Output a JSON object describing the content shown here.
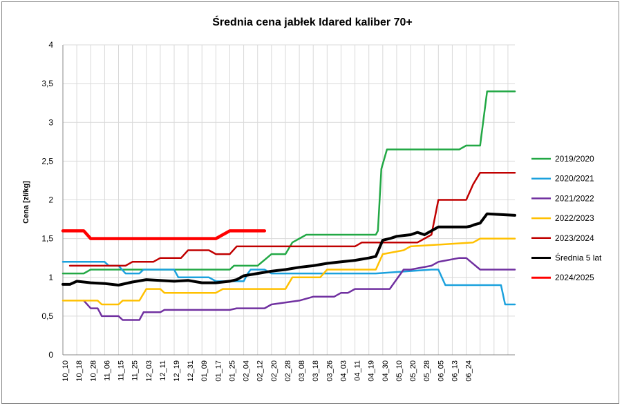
{
  "chart_data": {
    "type": "line",
    "title": "Średnia cena jabłek Idared kaliber 70+",
    "ylabel": "Cena [zł/kg]",
    "xlabel": "",
    "ylim": [
      0,
      4
    ],
    "ytick_values": [
      0,
      0.5,
      1,
      1.5,
      2,
      2.5,
      3,
      3.5,
      4
    ],
    "ytick_labels": [
      "0",
      "0,5",
      "1",
      "1,5",
      "2",
      "2,5",
      "3",
      "3,5",
      "4"
    ],
    "categories": [
      "10_10",
      "10_18",
      "10_28",
      "11_06",
      "11_15",
      "11_25",
      "12_03",
      "12_11",
      "12_19",
      "12_31",
      "01_09",
      "01_17",
      "01_25",
      "02_04",
      "02_12",
      "02_20",
      "02_28",
      "03_08",
      "03_18",
      "03_26",
      "04_03",
      "04_11",
      "04_19",
      "04_30",
      "05_10",
      "05_20",
      "05_28",
      "06_05",
      "06_13",
      "06_24"
    ],
    "x_extent": [
      0,
      32.5
    ],
    "grid": "vertical",
    "legend_position": "right",
    "series": [
      {
        "name": "2019/2020",
        "color": "#22a845",
        "width": 2.5,
        "x": [
          0,
          1.5,
          2.0,
          12.0,
          12.3,
          14.0,
          15.0,
          16.0,
          16.5,
          17.0,
          17.5,
          22.5,
          22.65,
          22.9,
          23.3,
          28.5,
          29.0,
          30.0,
          30.5,
          32.5
        ],
        "y": [
          1.05,
          1.05,
          1.1,
          1.1,
          1.15,
          1.15,
          1.3,
          1.3,
          1.45,
          1.5,
          1.55,
          1.55,
          1.6,
          2.4,
          2.65,
          2.65,
          2.7,
          2.7,
          3.4,
          3.4
        ]
      },
      {
        "name": "2020/2021",
        "color": "#1ba1dd",
        "width": 2.5,
        "x": [
          0,
          3.0,
          3.3,
          4.0,
          4.5,
          5.5,
          5.8,
          8.0,
          8.3,
          10.5,
          11.0,
          13.0,
          13.3,
          13.5,
          14.5,
          15.0,
          22.5,
          26.5,
          27.0,
          27.5,
          31.5,
          31.8,
          32.5
        ],
        "y": [
          1.2,
          1.2,
          1.15,
          1.15,
          1.05,
          1.05,
          1.1,
          1.1,
          1.0,
          1.0,
          0.95,
          0.95,
          1.05,
          1.1,
          1.1,
          1.05,
          1.05,
          1.1,
          1.1,
          0.9,
          0.9,
          0.65,
          0.65
        ]
      },
      {
        "name": "2021/2022",
        "color": "#7030a0",
        "width": 2.5,
        "x": [
          1.5,
          2.0,
          2.5,
          2.8,
          4.0,
          4.3,
          5.5,
          5.8,
          7.0,
          7.3,
          12.0,
          12.5,
          14.5,
          15.0,
          17.0,
          18.0,
          19.5,
          20.0,
          20.5,
          21.0,
          23.5,
          24.5,
          25.0,
          26.5,
          27.0,
          28.5,
          29.0,
          30.0,
          32.5
        ],
        "y": [
          0.7,
          0.6,
          0.6,
          0.5,
          0.5,
          0.45,
          0.45,
          0.55,
          0.55,
          0.58,
          0.58,
          0.6,
          0.6,
          0.65,
          0.7,
          0.75,
          0.75,
          0.8,
          0.8,
          0.85,
          0.85,
          1.1,
          1.1,
          1.15,
          1.2,
          1.25,
          1.25,
          1.1,
          1.1
        ]
      },
      {
        "name": "2022/2023",
        "color": "#ffc000",
        "width": 2.5,
        "x": [
          0,
          2.5,
          2.8,
          4.0,
          4.3,
          5.5,
          6.0,
          6.3,
          7.0,
          7.3,
          11.0,
          11.5,
          16.0,
          16.5,
          18.5,
          19.0,
          22.5,
          23.0,
          24.5,
          25.0,
          29.5,
          30.0,
          32.5
        ],
        "y": [
          0.7,
          0.7,
          0.65,
          0.65,
          0.7,
          0.7,
          0.85,
          0.85,
          0.85,
          0.8,
          0.8,
          0.85,
          0.85,
          1.0,
          1.0,
          1.1,
          1.1,
          1.3,
          1.35,
          1.4,
          1.45,
          1.5,
          1.5
        ]
      },
      {
        "name": "2023/2024",
        "color": "#c00000",
        "width": 2.5,
        "x": [
          0.5,
          3.0,
          3.3,
          4.5,
          5.0,
          6.5,
          7.0,
          8.5,
          9.0,
          10.5,
          11.0,
          12.0,
          12.5,
          21.0,
          21.5,
          25.5,
          26.0,
          26.5,
          27.0,
          29.0,
          29.5,
          30.0,
          32.5
        ],
        "y": [
          1.15,
          1.15,
          1.15,
          1.15,
          1.2,
          1.2,
          1.25,
          1.25,
          1.35,
          1.35,
          1.3,
          1.3,
          1.4,
          1.4,
          1.45,
          1.45,
          1.5,
          1.55,
          2.0,
          2.0,
          2.2,
          2.35,
          2.35
        ]
      },
      {
        "name": "Średnia 5 lat",
        "color": "#000000",
        "width": 4,
        "x": [
          0,
          0.5,
          1.0,
          2.0,
          3.0,
          4.0,
          5.0,
          6.0,
          7.0,
          8.0,
          9.0,
          10.0,
          11.0,
          11.5,
          12.0,
          12.5,
          13.0,
          14.0,
          15.0,
          16.0,
          17.0,
          18.0,
          19.0,
          20.0,
          21.0,
          22.0,
          22.5,
          23.0,
          23.5,
          24.0,
          25.0,
          25.5,
          26.0,
          27.0,
          28.0,
          29.0,
          29.3,
          29.6,
          30.0,
          30.5,
          32.5
        ],
        "y": [
          0.91,
          0.91,
          0.95,
          0.93,
          0.92,
          0.9,
          0.94,
          0.97,
          0.96,
          0.95,
          0.96,
          0.93,
          0.93,
          0.94,
          0.95,
          0.97,
          1.02,
          1.05,
          1.08,
          1.1,
          1.13,
          1.15,
          1.18,
          1.2,
          1.22,
          1.25,
          1.27,
          1.48,
          1.5,
          1.53,
          1.55,
          1.58,
          1.55,
          1.65,
          1.65,
          1.65,
          1.66,
          1.68,
          1.7,
          1.82,
          1.8
        ]
      },
      {
        "name": "2024/2025",
        "color": "#ff0000",
        "width": 4.5,
        "x": [
          0,
          1.5,
          2.0,
          11.0,
          11.5,
          11.8,
          12.0,
          14.5
        ],
        "y": [
          1.6,
          1.6,
          1.5,
          1.5,
          1.55,
          1.58,
          1.6,
          1.6
        ]
      }
    ]
  }
}
